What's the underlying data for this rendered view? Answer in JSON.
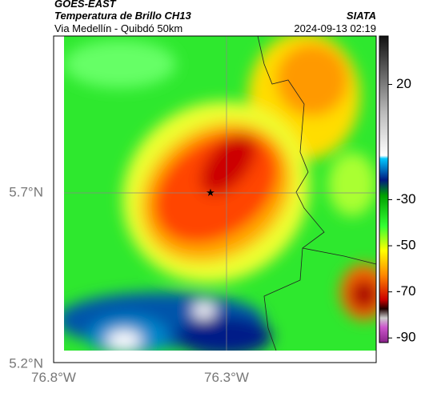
{
  "header": {
    "source": "GOES-EAST",
    "title": "Temperatura de Brillo CH13",
    "subtitle": "Via Medellín - Quibdó 50km",
    "agency": "SIATA",
    "timestamp": "2024-09-13 02:19"
  },
  "map": {
    "lat_labels": [
      "5.7°N",
      "5.2°N"
    ],
    "lon_labels": [
      "76.8°W",
      "76.3°W"
    ]
  },
  "colorbar": {
    "range": [
      -92,
      41
    ],
    "ticks": [
      20,
      -30,
      -50,
      -70,
      -90
    ]
  }
}
